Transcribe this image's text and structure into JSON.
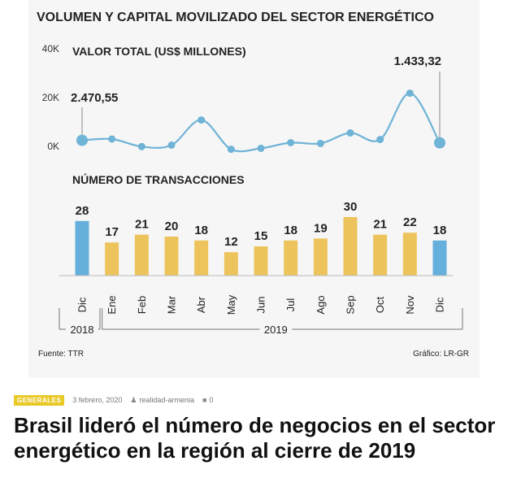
{
  "article": {
    "category": "GENERALES",
    "date": "3 febrero, 2020",
    "author": "realidad-armenia",
    "comments": "0",
    "title": "Brasil lideró el número de negocios en el sector energético en la región al cierre de 2019"
  },
  "chart_data": {
    "title": "VOLUMEN Y CAPITAL MOVILIZADO DEL SECTOR ENERGÉTICO",
    "source": "Fuente: TTR",
    "credit": "Gráfico: LR-GR",
    "months": [
      "Dic",
      "Ene",
      "Feb",
      "Mar",
      "Abr",
      "May",
      "Jun",
      "Jul",
      "Ago",
      "Sep",
      "Oct",
      "Nov",
      "Dic"
    ],
    "years": [
      {
        "label": "2018",
        "from": 0,
        "to": 0
      },
      {
        "label": "2019",
        "from": 1,
        "to": 12
      }
    ],
    "line": {
      "type": "line",
      "title": "VALOR TOTAL (US$ MILLONES)",
      "yticks": [
        {
          "v": 0,
          "label": "0K"
        },
        {
          "v": 20000,
          "label": "20K"
        },
        {
          "v": 40000,
          "label": "40K"
        }
      ],
      "ylim": [
        0,
        40000
      ],
      "values": [
        2470.55,
        3000,
        -100,
        500,
        10800,
        -1200,
        -800,
        1500,
        1200,
        5500,
        2800,
        21800,
        1433.32
      ],
      "annotations": [
        {
          "index": 0,
          "text": "2.470,55"
        },
        {
          "index": 12,
          "text": "1.433,32"
        }
      ],
      "color": "#6fb3d6"
    },
    "bars": {
      "type": "bar",
      "title": "NÚMERO DE TRANSACCIONES",
      "values": [
        28,
        17,
        21,
        20,
        18,
        12,
        15,
        18,
        19,
        30,
        21,
        22,
        18
      ],
      "highlight": [
        0,
        12
      ],
      "color": "#edc45c",
      "highlight_color": "#65afdc"
    }
  }
}
